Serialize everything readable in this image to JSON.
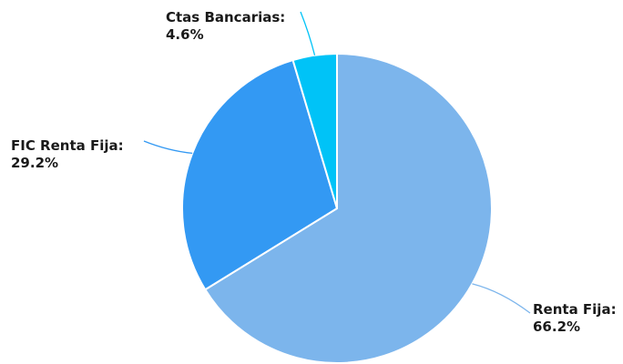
{
  "chart_data": {
    "type": "pie",
    "title": "",
    "slices": [
      {
        "name": "Renta Fija",
        "label": "Renta Fija:",
        "value": 66.2,
        "value_label": "66.2%",
        "color": "#7cb5ec"
      },
      {
        "name": "FIC Renta Fija",
        "label": "FIC Renta Fija:",
        "value": 29.2,
        "value_label": "29.2%",
        "color": "#3399f3"
      },
      {
        "name": "Ctas Bancarias",
        "label": "Ctas Bancarias:",
        "value": 4.6,
        "value_label": "4.6%",
        "color": "#00c3f7"
      }
    ],
    "start_angle": "12 o'clock",
    "direction": "clockwise",
    "legend": "none",
    "data_labels": "outside with connectors"
  }
}
